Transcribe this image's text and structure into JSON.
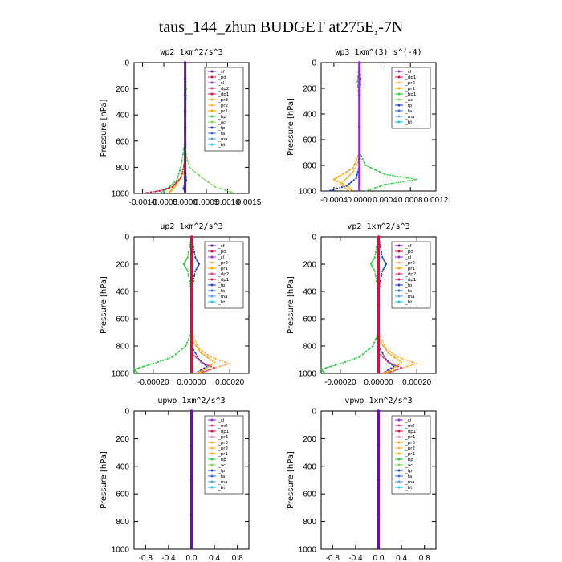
{
  "page": {
    "title": "taus_144_zhun  BUDGET at275E,-7N"
  },
  "colors": {
    "sf": "#6a0dad",
    "pd": "#d11141",
    "cl": "#8b2fc9",
    "dp2": "#e0427a",
    "dp1": "#d11141",
    "pr3": "#f5a623",
    "pr2": "#ffb347",
    "pr1": "#ffa500",
    "bp": "#2ecc40",
    "bp1": "#2ecc40",
    "ac": "#7ed957",
    "tp": "#1f3fbf",
    "ta": "#3a6fd8",
    "ma": "#5aa0e0",
    "bt": "#22c7e6",
    "mfl": "#e0427a",
    "pr4": "#f0a0c0",
    "main": "#d11141"
  },
  "chart_data": [
    {
      "type": "line",
      "title": "wp2  1xm^2/s^3",
      "ylabel": "Pressure [hPa]",
      "ylim": [
        1000,
        0
      ],
      "xlim": [
        -0.0012,
        0.0015
      ],
      "xticks": [
        -0.001,
        -0.0005,
        0.0,
        0.0005,
        0.001,
        0.0015
      ],
      "xtick_labels": [
        "-0.0010",
        "-0.0005",
        "0.0000",
        "0.0005",
        "0.0010",
        "0.0015"
      ],
      "yticks": [
        0,
        200,
        400,
        600,
        800,
        1000
      ],
      "legend_position": "top-right",
      "legend": [
        "_sf",
        "_pd",
        "_cl",
        "_dp2",
        "_dp1",
        "_pr3",
        "_pr2",
        "_pr1",
        "_bp",
        "_ac",
        "_tp",
        "_ta",
        "_ma",
        "_bt"
      ],
      "series": [
        {
          "name": "_ac",
          "color_key": "ac",
          "points": [
            [
              0,
              0
            ],
            [
              3e-05,
              200
            ],
            [
              0,
              500
            ],
            [
              2e-05,
              700
            ],
            [
              0.0001,
              800
            ],
            [
              0.0004,
              880
            ],
            [
              0.0007,
              950
            ],
            [
              0.0012,
              1000
            ]
          ]
        },
        {
          "name": "_bp",
          "color_key": "bp",
          "points": [
            [
              0,
              0
            ],
            [
              0,
              600
            ],
            [
              -0.0001,
              800
            ],
            [
              -0.0002,
              900
            ],
            [
              -0.0004,
              960
            ],
            [
              -0.0006,
              1000
            ]
          ]
        },
        {
          "name": "_pr1",
          "color_key": "pr1",
          "points": [
            [
              0,
              0
            ],
            [
              0,
              700
            ],
            [
              -5e-05,
              850
            ],
            [
              -0.0002,
              930
            ],
            [
              -0.0003,
              970
            ],
            [
              -0.0004,
              1000
            ]
          ]
        },
        {
          "name": "_dp1",
          "color_key": "dp1",
          "points": [
            [
              0,
              0
            ],
            [
              0,
              750
            ],
            [
              -0.0001,
              880
            ],
            [
              -0.0003,
              950
            ],
            [
              -0.0006,
              980
            ],
            [
              -0.001,
              1000
            ]
          ]
        },
        {
          "name": "_tp",
          "color_key": "tp",
          "points": [
            [
              0,
              0
            ],
            [
              0,
              800
            ],
            [
              3e-05,
              900
            ],
            [
              -4e-05,
              960
            ],
            [
              2e-05,
              1000
            ]
          ]
        },
        {
          "name": "_sf",
          "color_key": "sf",
          "points": [
            [
              0,
              0
            ],
            [
              0,
              500
            ],
            [
              0,
              1000
            ]
          ]
        }
      ]
    },
    {
      "type": "line",
      "title": "wp3  1xm^(3) s^(-4)",
      "ylabel": "Pressure [hPa]",
      "ylim": [
        1000,
        0
      ],
      "xlim": [
        -0.0006,
        0.0012
      ],
      "xticks": [
        -0.0004,
        0.0,
        0.0004,
        0.0008,
        0.0012
      ],
      "xtick_labels": [
        "-0.0004",
        "0.0000",
        "0.0004",
        "0.0008",
        "0.0012"
      ],
      "yticks": [
        0,
        200,
        400,
        600,
        800,
        1000
      ],
      "legend_position": "top-right",
      "legend": [
        "_cl",
        "_dp1",
        "_pr2",
        "_pr1",
        "_bp1",
        "_ac",
        "_tp",
        "_ta",
        "_ma",
        "_bt"
      ],
      "series": [
        {
          "name": "_bp1",
          "color_key": "bp1",
          "points": [
            [
              0,
              0
            ],
            [
              -3e-05,
              150
            ],
            [
              0,
              300
            ],
            [
              0,
              700
            ],
            [
              0.0001,
              800
            ],
            [
              0.0004,
              870
            ],
            [
              0.0009,
              910
            ],
            [
              0.0004,
              950
            ],
            [
              0.0001,
              1000
            ]
          ]
        },
        {
          "name": "_pr1",
          "color_key": "pr1",
          "points": [
            [
              0,
              0
            ],
            [
              0,
              700
            ],
            [
              -0.0001,
              820
            ],
            [
              -0.0003,
              880
            ],
            [
              -0.0004,
              910
            ],
            [
              -0.0002,
              960
            ],
            [
              -0.0001,
              1000
            ]
          ]
        },
        {
          "name": "_pr2",
          "color_key": "pr2",
          "points": [
            [
              0,
              0
            ],
            [
              0,
              750
            ],
            [
              -0.0001,
              850
            ],
            [
              -0.0002,
              900
            ],
            [
              -0.0003,
              950
            ],
            [
              -0.00015,
              1000
            ]
          ]
        },
        {
          "name": "_tp",
          "color_key": "tp",
          "points": [
            [
              0,
              0
            ],
            [
              2e-05,
              130
            ],
            [
              0,
              300
            ],
            [
              0,
              800
            ],
            [
              -5e-05,
              900
            ],
            [
              -0.0002,
              960
            ],
            [
              -0.0005,
              1000
            ]
          ]
        },
        {
          "name": "_cl",
          "color_key": "cl",
          "points": [
            [
              0,
              0
            ],
            [
              0,
              1000
            ]
          ]
        }
      ]
    },
    {
      "type": "line",
      "title": "up2  1xm^2/s^3",
      "ylabel": "Pressure [hPa]",
      "ylim": [
        1000,
        0
      ],
      "xlim": [
        -0.0003,
        0.0003
      ],
      "xticks": [
        -0.0002,
        0.0,
        0.0002
      ],
      "xtick_labels": [
        "-0.00020",
        "0.00000",
        "0.00020"
      ],
      "yticks": [
        0,
        200,
        400,
        600,
        800,
        1000
      ],
      "legend_position": "top-right",
      "legend": [
        "_sf",
        "_pd",
        "_cl",
        "_pr2",
        "_pr1",
        "_dp2",
        "_dp1",
        "_tp",
        "_ta",
        "_ma",
        "_bt"
      ],
      "series": [
        {
          "name": "_dp1",
          "color_key": "bp",
          "points": [
            [
              0,
              0
            ],
            [
              -2e-05,
              150
            ],
            [
              -4e-05,
              200
            ],
            [
              -2e-05,
              250
            ],
            [
              0,
              400
            ],
            [
              0,
              700
            ],
            [
              -3e-05,
              800
            ],
            [
              -0.0001,
              880
            ],
            [
              -0.0002,
              930
            ],
            [
              -0.0003,
              970
            ],
            [
              -0.00028,
              1000
            ]
          ]
        },
        {
          "name": "_tp",
          "color_key": "tp",
          "points": [
            [
              0,
              0
            ],
            [
              2e-05,
              150
            ],
            [
              4e-05,
              200
            ],
            [
              2e-05,
              250
            ],
            [
              0,
              400
            ],
            [
              0,
              800
            ],
            [
              4e-05,
              900
            ],
            [
              8e-05,
              950
            ],
            [
              2e-05,
              1000
            ]
          ]
        },
        {
          "name": "_pr2",
          "color_key": "pr2",
          "points": [
            [
              0,
              0
            ],
            [
              0,
              700
            ],
            [
              4e-05,
              820
            ],
            [
              0.0001,
              880
            ],
            [
              0.0002,
              930
            ],
            [
              0.0001,
              970
            ],
            [
              5e-05,
              1000
            ]
          ]
        },
        {
          "name": "_pr1",
          "color_key": "pr1",
          "points": [
            [
              0,
              0
            ],
            [
              0,
              750
            ],
            [
              5e-05,
              850
            ],
            [
              0.00012,
              920
            ],
            [
              6e-05,
              980
            ],
            [
              2e-05,
              1000
            ]
          ]
        },
        {
          "name": "_dp2",
          "color_key": "dp2",
          "points": [
            [
              0,
              0
            ],
            [
              0,
              850
            ],
            [
              5e-05,
              920
            ],
            [
              0.00012,
              960
            ],
            [
              4e-05,
              1000
            ]
          ]
        },
        {
          "name": "_pd",
          "color_key": "main",
          "points": [
            [
              0,
              0
            ],
            [
              0,
              1000
            ]
          ]
        }
      ]
    },
    {
      "type": "line",
      "title": "vp2  1xm^2/s^3",
      "ylabel": "Pressure [hPa]",
      "ylim": [
        1000,
        0
      ],
      "xlim": [
        -0.0003,
        0.0003
      ],
      "xticks": [
        -0.0002,
        0.0,
        0.0002
      ],
      "xtick_labels": [
        "-0.00020",
        "0.00000",
        "0.00020"
      ],
      "yticks": [
        0,
        200,
        400,
        600,
        800,
        1000
      ],
      "legend_position": "top-right",
      "legend": [
        "_sf",
        "_pd",
        "_cl",
        "_pr2",
        "_pr1",
        "_dp2",
        "_dp1",
        "_tp",
        "_ta",
        "_ma",
        "_bt"
      ],
      "series": [
        {
          "name": "_dp1",
          "color_key": "bp",
          "points": [
            [
              0,
              0
            ],
            [
              -2e-05,
              150
            ],
            [
              -4e-05,
              200
            ],
            [
              -2e-05,
              250
            ],
            [
              0,
              400
            ],
            [
              0,
              700
            ],
            [
              -3e-05,
              800
            ],
            [
              -0.0001,
              880
            ],
            [
              -0.0002,
              930
            ],
            [
              -0.0003,
              970
            ],
            [
              -0.00028,
              1000
            ]
          ]
        },
        {
          "name": "_tp",
          "color_key": "tp",
          "points": [
            [
              0,
              0
            ],
            [
              2e-05,
              150
            ],
            [
              4e-05,
              200
            ],
            [
              2e-05,
              250
            ],
            [
              0,
              400
            ],
            [
              0,
              800
            ],
            [
              4e-05,
              900
            ],
            [
              8e-05,
              950
            ],
            [
              2e-05,
              1000
            ]
          ]
        },
        {
          "name": "_pr2",
          "color_key": "pr2",
          "points": [
            [
              0,
              0
            ],
            [
              0,
              700
            ],
            [
              4e-05,
              820
            ],
            [
              0.0001,
              880
            ],
            [
              0.0002,
              930
            ],
            [
              0.0001,
              970
            ],
            [
              5e-05,
              1000
            ]
          ]
        },
        {
          "name": "_pr1",
          "color_key": "pr1",
          "points": [
            [
              0,
              0
            ],
            [
              0,
              750
            ],
            [
              5e-05,
              850
            ],
            [
              0.00012,
              920
            ],
            [
              6e-05,
              980
            ],
            [
              2e-05,
              1000
            ]
          ]
        },
        {
          "name": "_dp2",
          "color_key": "dp2",
          "points": [
            [
              0,
              0
            ],
            [
              0,
              850
            ],
            [
              5e-05,
              920
            ],
            [
              0.00012,
              960
            ],
            [
              4e-05,
              1000
            ]
          ]
        },
        {
          "name": "_pd",
          "color_key": "main",
          "points": [
            [
              0,
              0
            ],
            [
              0,
              1000
            ]
          ]
        }
      ]
    },
    {
      "type": "line",
      "title": "upwp  1xm^2/s^3",
      "ylabel": "Pressure [hPa]",
      "ylim": [
        1000,
        0
      ],
      "xlim": [
        -1.0,
        1.0
      ],
      "xticks": [
        -0.8,
        -0.4,
        0.0,
        0.4,
        0.8
      ],
      "xtick_labels": [
        "-0.8",
        "-0.4",
        "0.0",
        "0.4",
        "0.8"
      ],
      "yticks": [
        0,
        200,
        400,
        600,
        800,
        1000
      ],
      "legend_position": "top-right",
      "legend": [
        "_cl",
        "_mfl",
        "_dp1",
        "_pr4",
        "_pr3",
        "_pr2",
        "_pr1",
        "_bp",
        "_ac",
        "_tp",
        "_ta",
        "_ma",
        "_bt"
      ],
      "series": [
        {
          "name": "_cl",
          "color_key": "sf",
          "points": [
            [
              0,
              0
            ],
            [
              0,
              1000
            ]
          ]
        }
      ]
    },
    {
      "type": "line",
      "title": "vpwp  1xm^2/s^3",
      "ylabel": "Pressure [hPa]",
      "ylim": [
        1000,
        0
      ],
      "xlim": [
        -1.0,
        1.0
      ],
      "xticks": [
        -0.8,
        -0.4,
        0.0,
        0.4,
        0.8
      ],
      "xtick_labels": [
        "-0.8",
        "-0.4",
        "0.0",
        "0.4",
        "0.8"
      ],
      "yticks": [
        0,
        200,
        400,
        600,
        800,
        1000
      ],
      "legend_position": "top-right",
      "legend": [
        "_cl",
        "_mfl",
        "_dp1",
        "_pr4",
        "_pr3",
        "_pr2",
        "_pr1",
        "_bp",
        "_ac",
        "_tp",
        "_ta",
        "_ma",
        "_bt"
      ],
      "series": [
        {
          "name": "_cl",
          "color_key": "sf",
          "points": [
            [
              0,
              0
            ],
            [
              0,
              1000
            ]
          ]
        }
      ]
    }
  ]
}
